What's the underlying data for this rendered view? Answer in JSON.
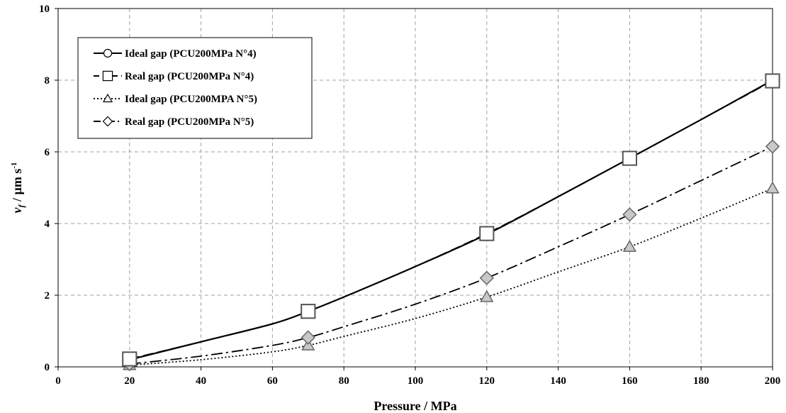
{
  "chart_data": {
    "type": "line",
    "xlabel": "Pressure / MPa",
    "ylabel": {
      "v": "v",
      "sub": "f",
      "unit": " / µm s",
      "sup": "-1"
    },
    "xlim": [
      0,
      200
    ],
    "ylim": [
      0,
      10
    ],
    "xticks": [
      "0",
      "20",
      "40",
      "60",
      "80",
      "100",
      "120",
      "140",
      "160",
      "180",
      "200"
    ],
    "yticks": [
      "0",
      "2",
      "4",
      "6",
      "8",
      "10"
    ],
    "grid": true,
    "legend_position": "top-left",
    "series": [
      {
        "name": "Ideal gap (PCU200MPa N°4)",
        "marker": "circle",
        "line_style": "solid",
        "color": "#000000",
        "x": [
          20,
          70,
          120,
          160,
          200
        ],
        "y": [
          0.2,
          1.55,
          3.7,
          5.82,
          8.0
        ],
        "curve": [
          [
            20,
            0.2
          ],
          [
            40,
            0.7
          ],
          [
            60,
            1.2
          ],
          [
            70,
            1.55
          ],
          [
            80,
            1.95
          ],
          [
            100,
            2.8
          ],
          [
            120,
            3.7
          ],
          [
            140,
            4.75
          ],
          [
            160,
            5.82
          ],
          [
            180,
            6.9
          ],
          [
            200,
            8.0
          ]
        ]
      },
      {
        "name": "Real gap (PCU200MPa N°4)",
        "marker": "square",
        "line_style": "dashed",
        "color": "#000000",
        "x": [
          20,
          70,
          120,
          160,
          200
        ],
        "y": [
          0.22,
          1.55,
          3.72,
          5.82,
          7.98
        ],
        "curve": [
          [
            20,
            0.22
          ],
          [
            40,
            0.7
          ],
          [
            60,
            1.2
          ],
          [
            70,
            1.55
          ],
          [
            80,
            1.95
          ],
          [
            100,
            2.8
          ],
          [
            120,
            3.72
          ],
          [
            140,
            4.75
          ],
          [
            160,
            5.82
          ],
          [
            180,
            6.9
          ],
          [
            200,
            7.98
          ]
        ]
      },
      {
        "name": "Ideal gap (PCU200MPA N°5)",
        "marker": "triangle",
        "line_style": "dotted",
        "color": "#000000",
        "x": [
          20,
          70,
          120,
          160,
          200
        ],
        "y": [
          0.05,
          0.6,
          1.95,
          3.35,
          4.98
        ],
        "curve": [
          [
            20,
            0.05
          ],
          [
            40,
            0.2
          ],
          [
            60,
            0.42
          ],
          [
            70,
            0.6
          ],
          [
            80,
            0.85
          ],
          [
            100,
            1.35
          ],
          [
            120,
            1.95
          ],
          [
            140,
            2.65
          ],
          [
            160,
            3.35
          ],
          [
            180,
            4.15
          ],
          [
            200,
            4.98
          ]
        ]
      },
      {
        "name": "Real gap (PCU200MPa N°5)",
        "marker": "diamond",
        "line_style": "dashdot",
        "color": "#000000",
        "x": [
          20,
          70,
          120,
          160,
          200
        ],
        "y": [
          0.08,
          0.82,
          2.48,
          4.25,
          6.15
        ],
        "curve": [
          [
            20,
            0.08
          ],
          [
            40,
            0.3
          ],
          [
            60,
            0.6
          ],
          [
            70,
            0.82
          ],
          [
            80,
            1.12
          ],
          [
            100,
            1.75
          ],
          [
            120,
            2.48
          ],
          [
            140,
            3.35
          ],
          [
            160,
            4.25
          ],
          [
            180,
            5.2
          ],
          [
            200,
            6.15
          ]
        ]
      }
    ]
  }
}
